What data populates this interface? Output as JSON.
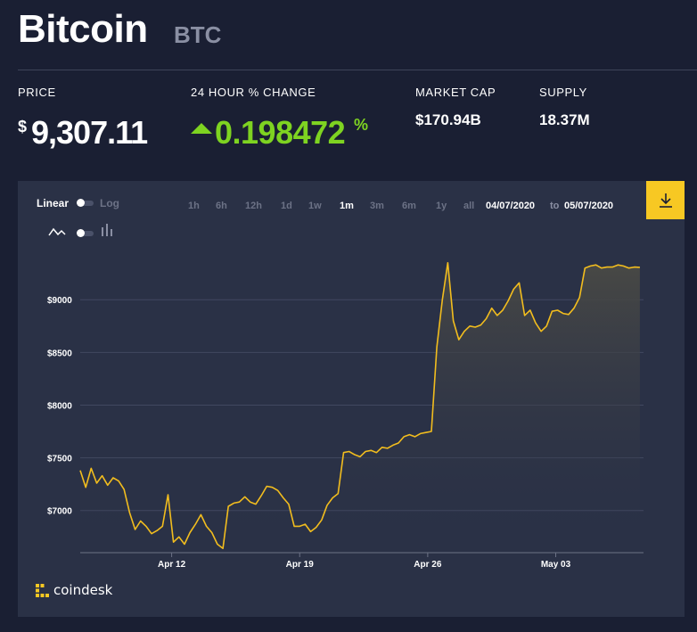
{
  "header": {
    "coin_name": "Bitcoin",
    "ticker": "BTC"
  },
  "stats": {
    "price_label": "PRICE",
    "price_currency": "$",
    "price_value": "9,307.11",
    "change_label": "24 HOUR % CHANGE",
    "change_value": "0.198472",
    "change_unit": "%",
    "market_cap_label": "MARKET CAP",
    "market_cap_value": "$170.94B",
    "supply_label": "SUPPLY",
    "supply_value": "18.37M"
  },
  "controls": {
    "linear_label": "Linear",
    "log_label": "Log",
    "scale": "linear",
    "chart_style": "line",
    "line_icon": "line-chart-icon",
    "candle_icon": "candlestick-icon",
    "ranges": [
      {
        "label": "1h",
        "active": false
      },
      {
        "label": "6h",
        "active": false
      },
      {
        "label": "12h",
        "active": false
      },
      {
        "label": "1d",
        "active": false
      },
      {
        "label": "1w",
        "active": false
      },
      {
        "label": "1m",
        "active": true
      },
      {
        "label": "3m",
        "active": false
      },
      {
        "label": "6m",
        "active": false
      },
      {
        "label": "1y",
        "active": false
      },
      {
        "label": "all",
        "active": false
      }
    ],
    "date_from": "04/07/2020",
    "date_to_word": "to",
    "date_to": "05/07/2020",
    "download_icon": "download-icon"
  },
  "brand": {
    "name": "coindesk",
    "logo_icon": "coindesk-logo-icon"
  },
  "colors": {
    "background": "#1a1f33",
    "panel": "#2a3146",
    "accent": "#f7c823",
    "positive": "#7ed321",
    "line": "#f2bd1e"
  },
  "chart_data": {
    "type": "line",
    "ylim": [
      6600,
      9450
    ],
    "y_ticks": [
      7000,
      7500,
      8000,
      8500,
      9000
    ],
    "y_tick_labels": [
      "$7000",
      "$7500",
      "$8000",
      "$8500",
      "$9000"
    ],
    "x_range": [
      0,
      30.8
    ],
    "x_ticks": [
      5,
      12,
      19,
      26
    ],
    "x_tick_labels": [
      "Apr 12",
      "Apr 19",
      "Apr 26",
      "May 03"
    ],
    "grid": true,
    "series": [
      {
        "x": [
          0,
          0.3,
          0.6,
          0.9,
          1.2,
          1.5,
          1.8,
          2.1,
          2.4,
          2.7,
          3.0,
          3.3,
          3.6,
          3.9,
          4.2,
          4.5,
          4.8,
          5.1,
          5.4,
          5.7,
          6.0,
          6.3,
          6.6,
          6.9,
          7.2,
          7.5,
          7.8,
          8.1,
          8.4,
          8.7,
          9.0,
          9.3,
          9.6,
          9.9,
          10.2,
          10.5,
          10.8,
          11.1,
          11.4,
          11.7,
          12.0,
          12.3,
          12.6,
          12.9,
          13.2,
          13.5,
          13.8,
          14.1,
          14.4,
          14.7,
          15.0,
          15.3,
          15.6,
          15.9,
          16.2,
          16.5,
          16.8,
          17.1,
          17.4,
          17.7,
          18.0,
          18.3,
          18.6,
          18.9,
          19.2,
          19.5,
          19.8,
          20.1,
          20.4,
          20.7,
          21.0,
          21.3,
          21.6,
          21.9,
          22.2,
          22.5,
          22.8,
          23.1,
          23.4,
          23.7,
          24.0,
          24.3,
          24.6,
          24.9,
          25.2,
          25.5,
          25.8,
          26.1,
          26.4,
          26.7,
          27.0,
          27.3,
          27.6,
          27.9,
          28.2,
          28.5,
          28.8,
          29.1,
          29.4,
          29.7,
          30.0,
          30.3,
          30.6
        ],
        "y": [
          7380,
          7220,
          7400,
          7260,
          7330,
          7240,
          7310,
          7280,
          7200,
          6980,
          6820,
          6900,
          6850,
          6780,
          6810,
          6850,
          7150,
          6700,
          6750,
          6680,
          6790,
          6870,
          6960,
          6850,
          6790,
          6680,
          6640,
          7040,
          7070,
          7080,
          7130,
          7080,
          7060,
          7140,
          7230,
          7220,
          7190,
          7120,
          7060,
          6850,
          6850,
          6870,
          6800,
          6840,
          6910,
          7050,
          7120,
          7160,
          7550,
          7560,
          7530,
          7510,
          7560,
          7570,
          7550,
          7600,
          7590,
          7620,
          7640,
          7700,
          7720,
          7700,
          7730,
          7740,
          7750,
          8550,
          9000,
          9350,
          8800,
          8620,
          8700,
          8750,
          8740,
          8760,
          8820,
          8920,
          8850,
          8900,
          8990,
          9100,
          9160,
          8850,
          8900,
          8780,
          8700,
          8750,
          8890,
          8900,
          8870,
          8860,
          8920,
          9020,
          9300,
          9320,
          9330,
          9300,
          9310,
          9310,
          9330,
          9320,
          9300,
          9310,
          9307
        ]
      }
    ]
  }
}
